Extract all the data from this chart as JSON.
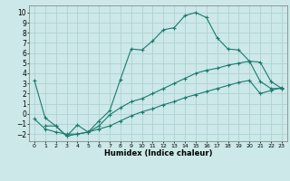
{
  "title": "",
  "xlabel": "Humidex (Indice chaleur)",
  "bg_color": "#cce8e8",
  "line_color": "#1a7a6e",
  "grid_color": "#aacece",
  "xlim": [
    -0.5,
    23.5
  ],
  "ylim": [
    -2.7,
    10.7
  ],
  "xticks": [
    0,
    1,
    2,
    3,
    4,
    5,
    6,
    7,
    8,
    9,
    10,
    11,
    12,
    13,
    14,
    15,
    16,
    17,
    18,
    19,
    20,
    21,
    22,
    23
  ],
  "yticks": [
    -2,
    -1,
    0,
    1,
    2,
    3,
    4,
    5,
    6,
    7,
    8,
    9,
    10
  ],
  "curve1_x": [
    0,
    1,
    2,
    3,
    4,
    5,
    6,
    7,
    8,
    9,
    10,
    11,
    12,
    13,
    14,
    15,
    16,
    17,
    18,
    19,
    20,
    21,
    22,
    23
  ],
  "curve1_y": [
    3.3,
    -0.4,
    -1.2,
    -2.2,
    -1.1,
    -1.8,
    -0.7,
    0.3,
    3.4,
    6.4,
    6.3,
    7.2,
    8.3,
    8.5,
    9.7,
    10.0,
    9.5,
    7.5,
    6.4,
    6.3,
    5.2,
    5.1,
    3.2,
    2.5
  ],
  "curve2_x": [
    1,
    2,
    3,
    4,
    5,
    6,
    7,
    8,
    9,
    10,
    11,
    12,
    13,
    14,
    15,
    16,
    17,
    18,
    19,
    20,
    21,
    22,
    23
  ],
  "curve2_y": [
    -1.2,
    -1.2,
    -2.2,
    -2.0,
    -1.8,
    -1.2,
    -0.1,
    0.6,
    1.2,
    1.5,
    2.0,
    2.5,
    3.0,
    3.5,
    4.0,
    4.3,
    4.5,
    4.8,
    5.0,
    5.2,
    3.2,
    2.5,
    2.5
  ],
  "curve3_x": [
    0,
    1,
    2,
    3,
    4,
    5,
    6,
    7,
    8,
    9,
    10,
    11,
    12,
    13,
    14,
    15,
    16,
    17,
    18,
    19,
    20,
    21,
    22,
    23
  ],
  "curve3_y": [
    -0.5,
    -1.5,
    -1.8,
    -2.0,
    -2.0,
    -1.8,
    -1.5,
    -1.2,
    -0.7,
    -0.2,
    0.2,
    0.5,
    0.9,
    1.2,
    1.6,
    1.9,
    2.2,
    2.5,
    2.8,
    3.1,
    3.3,
    2.0,
    2.3,
    2.6
  ]
}
